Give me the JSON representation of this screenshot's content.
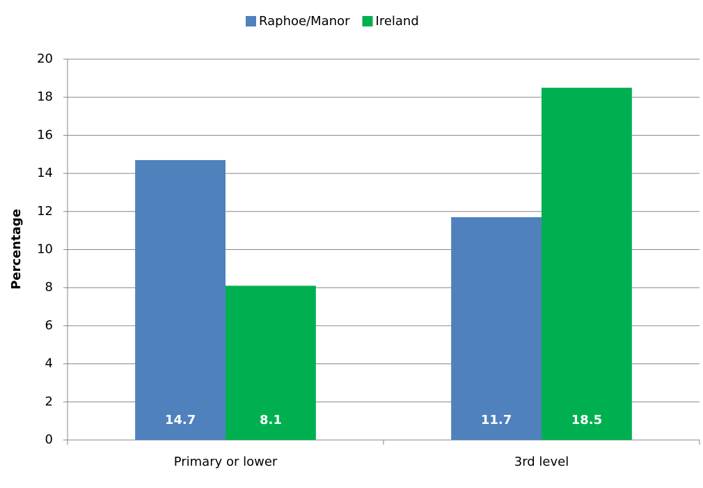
{
  "chart_data": {
    "type": "bar",
    "y_label": "Percentage",
    "categories": [
      "Primary or lower",
      "3rd level"
    ],
    "series": [
      {
        "name": "Raphoe/Manor",
        "color": "#4f81bd",
        "values": [
          14.7,
          11.7
        ]
      },
      {
        "name": "Ireland",
        "color": "#00b050",
        "values": [
          8.1,
          18.5
        ]
      }
    ],
    "ylim": [
      0,
      20
    ],
    "yticks": [
      0,
      2,
      4,
      6,
      8,
      10,
      12,
      14,
      16,
      18,
      20
    ],
    "grid": true,
    "legend": "top",
    "data_labels": true
  }
}
